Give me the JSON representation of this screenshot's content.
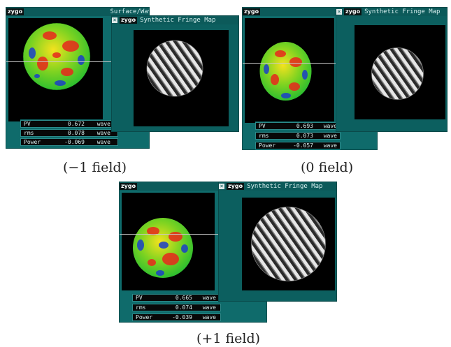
{
  "panels": [
    {
      "main_title": "Surface/Wavefront Map",
      "fringe_title": "Synthetic Fringe Map",
      "logo_text": "zygo",
      "stats": [
        {
          "label": "PV",
          "value": "0.672",
          "unit": "wave"
        },
        {
          "label": "rms",
          "value": "0.078",
          "unit": "wave"
        },
        {
          "label": "Power",
          "value": "-0.069",
          "unit": "wave"
        }
      ],
      "caption": "(−1 field)"
    },
    {
      "main_title": "",
      "fringe_title": "Synthetic Fringe Map",
      "logo_text": "zygo",
      "stats": [
        {
          "label": "PV",
          "value": "0.693",
          "unit": "wave"
        },
        {
          "label": "rms",
          "value": "0.073",
          "unit": "wave"
        },
        {
          "label": "Power",
          "value": "-0.057",
          "unit": "wave"
        }
      ],
      "caption": "(0 field)"
    },
    {
      "main_title": "",
      "fringe_title": "Synthetic Fringe Map",
      "logo_text": "zygo",
      "stats": [
        {
          "label": "PV",
          "value": "0.665",
          "unit": "wave"
        },
        {
          "label": "rms",
          "value": "0.074",
          "unit": "wave"
        },
        {
          "label": "Power",
          "value": "-0.039",
          "unit": "wave"
        }
      ],
      "caption": "(+1 field)"
    }
  ],
  "colors": {
    "window_teal": "#0f6b6b",
    "map_red": "#e8281c",
    "map_yellow": "#f4e21e",
    "map_green": "#2fbf2f",
    "map_blue": "#1b3fc8"
  },
  "icons": {
    "close": "close-icon"
  }
}
